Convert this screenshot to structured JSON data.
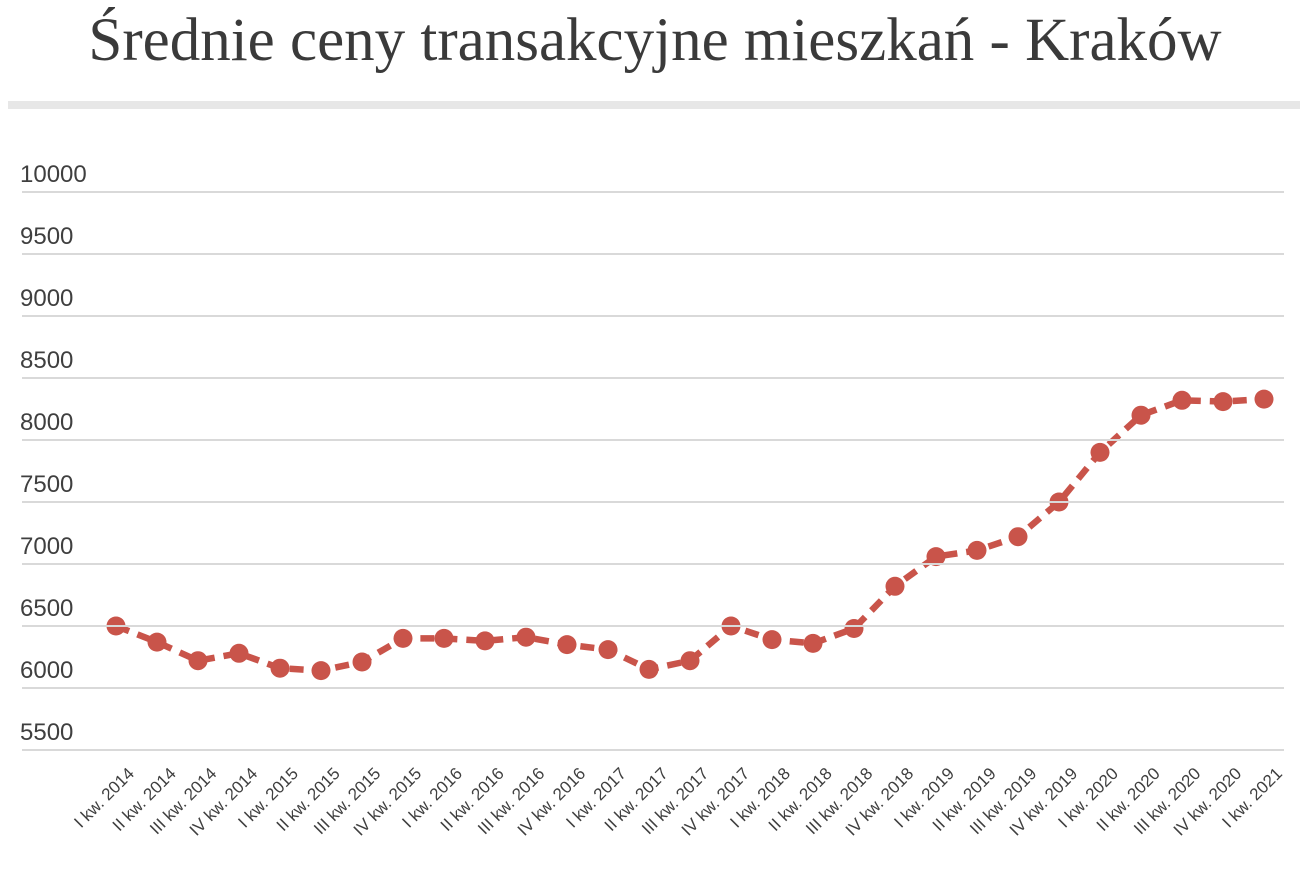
{
  "title": "Średnie ceny transakcyjne mieszkań - Kraków",
  "chart_data": {
    "type": "line",
    "title": "Średnie ceny transakcyjne mieszkań - Kraków",
    "categories": [
      "I kw. 2014",
      "II kw. 2014",
      "III kw. 2014",
      "IV kw. 2014",
      "I kw. 2015",
      "II kw. 2015",
      "III kw. 2015",
      "IV kw. 2015",
      "I kw. 2016",
      "II kw. 2016",
      "III kw. 2016",
      "IV kw. 2016",
      "I kw. 2017",
      "II kw. 2017",
      "III kw. 2017",
      "IV kw. 2017",
      "I kw. 2018",
      "II kw. 2018",
      "III kw. 2018",
      "IV kw. 2018",
      "I kw. 2019",
      "II kw. 2019",
      "III kw. 2019",
      "IV kw. 2019",
      "I kw. 2020",
      "II kw. 2020",
      "III kw. 2020",
      "IV kw. 2020",
      "I kw. 2021"
    ],
    "values": [
      6500,
      6370,
      6220,
      6280,
      6160,
      6140,
      6210,
      6400,
      6400,
      6380,
      6410,
      6350,
      6310,
      6150,
      6220,
      6500,
      6390,
      6360,
      6480,
      6820,
      7060,
      7110,
      7220,
      7500,
      7900,
      8200,
      8320,
      8310,
      8330
    ],
    "xlabel": "",
    "ylabel": "",
    "ylim": [
      5500,
      10000
    ],
    "yticks": [
      10000,
      9500,
      9000,
      8500,
      8000,
      7500,
      7000,
      6500,
      6000,
      5500
    ],
    "grid": true,
    "legend": "none",
    "line_style": "dashed",
    "marker": "circle",
    "line_color": "#c9544a",
    "marker_color": "#c9544a",
    "grid_color": "#d9d9d9",
    "axis_text_color": "#3f3f3f",
    "title_color": "#3a3a3a",
    "divider_color": "#e7e7e7",
    "background_color": "#ffffff"
  }
}
